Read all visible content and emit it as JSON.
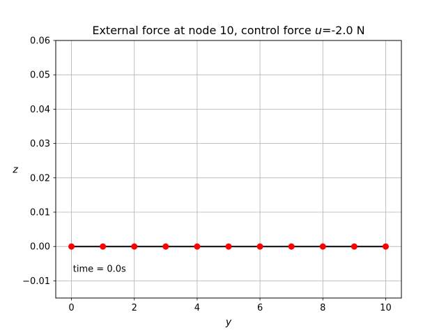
{
  "chart_data": {
    "type": "line",
    "title": {
      "prefix": "External force at node 10, control force ",
      "var": "u",
      "suffix": "=-2.0 N"
    },
    "xlabel": "y",
    "ylabel": "z",
    "xlim": [
      -0.5,
      10.5
    ],
    "ylim": [
      -0.015,
      0.06
    ],
    "xticks": [
      0,
      2,
      4,
      6,
      8,
      10
    ],
    "xtick_labels": [
      "0",
      "2",
      "4",
      "6",
      "8",
      "10"
    ],
    "yticks": [
      -0.01,
      0.0,
      0.01,
      0.02,
      0.03,
      0.04,
      0.05,
      0.06
    ],
    "ytick_labels": [
      "−0.01",
      "0.00",
      "0.01",
      "0.02",
      "0.03",
      "0.04",
      "0.05",
      "0.06"
    ],
    "grid": true,
    "series": [
      {
        "x": [
          0,
          1,
          2,
          3,
          4,
          5,
          6,
          7,
          8,
          9,
          10
        ],
        "y": [
          0,
          0,
          0,
          0,
          0,
          0,
          0,
          0,
          0,
          0,
          0
        ],
        "line_color": "#000000",
        "marker_color": "#ff0000"
      }
    ],
    "annotation": {
      "text": "time = 0.0s",
      "x": 0.05,
      "y": -0.0065
    }
  }
}
